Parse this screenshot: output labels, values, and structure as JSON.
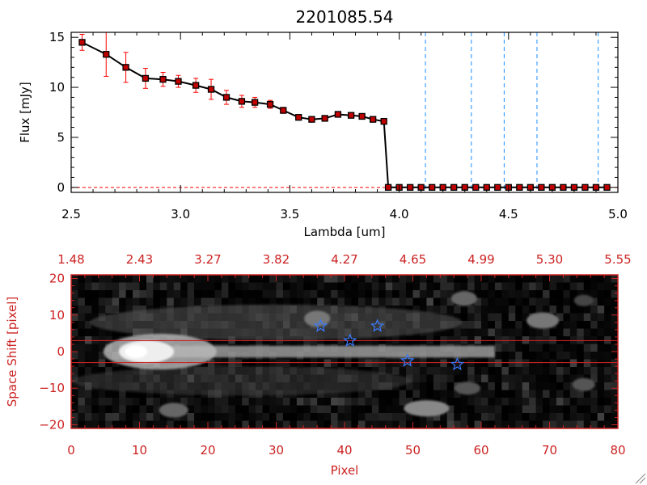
{
  "chart_data": [
    {
      "type": "line",
      "title": "2201085.54",
      "xlabel": "Lambda [um]",
      "ylabel": "Flux [mJy]",
      "xlim": [
        2.5,
        5.0
      ],
      "ylim": [
        -0.5,
        15.5
      ],
      "xticks": [
        2.5,
        3.0,
        3.5,
        4.0,
        4.5,
        5.0
      ],
      "xtick_labels": [
        "2.5",
        "3.0",
        "3.5",
        "4.0",
        "4.5",
        "5.0"
      ],
      "yticks": [
        0,
        5,
        10,
        15
      ],
      "ytick_labels": [
        "0",
        "5",
        "10",
        "15"
      ],
      "series": [
        {
          "color": "#000000",
          "marker_color": "#c00000",
          "errorbar_color": "#ff0000",
          "x": [
            2.55,
            2.66,
            2.75,
            2.84,
            2.92,
            2.99,
            3.07,
            3.14,
            3.21,
            3.28,
            3.34,
            3.41,
            3.47,
            3.54,
            3.6,
            3.66,
            3.72,
            3.78,
            3.83,
            3.88,
            3.93,
            3.95,
            4.0,
            4.05,
            4.1,
            4.15,
            4.2,
            4.25,
            4.3,
            4.35,
            4.4,
            4.45,
            4.5,
            4.55,
            4.6,
            4.65,
            4.7,
            4.75,
            4.8,
            4.85,
            4.9,
            4.95
          ],
          "y": [
            14.5,
            13.3,
            12.0,
            10.9,
            10.8,
            10.6,
            10.2,
            9.8,
            9.0,
            8.6,
            8.5,
            8.3,
            7.7,
            7.0,
            6.8,
            6.9,
            7.3,
            7.2,
            7.1,
            6.8,
            6.6,
            0,
            0,
            0,
            0,
            0,
            0,
            0,
            0,
            0,
            0,
            0,
            0,
            0,
            0,
            0,
            0,
            0,
            0,
            0,
            0,
            0
          ],
          "yerr": [
            0.8,
            2.2,
            1.5,
            1.0,
            0.7,
            0.6,
            0.7,
            1.0,
            0.7,
            0.6,
            0.5,
            0.4,
            0.3,
            0.2,
            0.2,
            0.2,
            0.2,
            0.2,
            0.2,
            0.2,
            0.2,
            0,
            0,
            0,
            0,
            0,
            0,
            0,
            0,
            0,
            0,
            0,
            0,
            0,
            0,
            0,
            0,
            0,
            0,
            0,
            0,
            0
          ]
        }
      ],
      "vlines": [
        4.12,
        4.33,
        4.48,
        4.63,
        4.91
      ],
      "vline_color": "#1e90ff",
      "hline": 0,
      "hline_color": "#ff0000",
      "grid": false
    },
    {
      "type": "heatmap",
      "xlabel": "Pixel",
      "ylabel": "Space Shift [pixel]",
      "xlim": [
        0,
        80
      ],
      "ylim": [
        -21,
        21
      ],
      "xticks": [
        0,
        10,
        20,
        30,
        40,
        50,
        60,
        70,
        80
      ],
      "xtick_labels": [
        "0",
        "10",
        "20",
        "30",
        "40",
        "50",
        "60",
        "70",
        "80"
      ],
      "yticks": [
        -20,
        -10,
        0,
        10,
        20
      ],
      "ytick_labels": [
        "−20",
        "−10",
        "0",
        "10",
        "20"
      ],
      "top_axis_ticks": [
        0,
        10,
        20,
        30,
        40,
        50,
        60,
        70,
        80
      ],
      "top_axis_labels": [
        "1.48",
        "2.43",
        "3.27",
        "3.82",
        "4.27",
        "4.65",
        "4.99",
        "5.30",
        "5.55"
      ],
      "axis_color": "#cc2222",
      "aperture_lines": [
        3,
        -3
      ],
      "aperture_color": "#cc2222",
      "stars": [
        {
          "x": 36.5,
          "y": 7
        },
        {
          "x": 40.8,
          "y": 3
        },
        {
          "x": 44.8,
          "y": 7
        },
        {
          "x": 49.2,
          "y": -2.5
        },
        {
          "x": 56.5,
          "y": -3.5
        }
      ],
      "star_color": "#3a7bff",
      "grid": false
    }
  ]
}
